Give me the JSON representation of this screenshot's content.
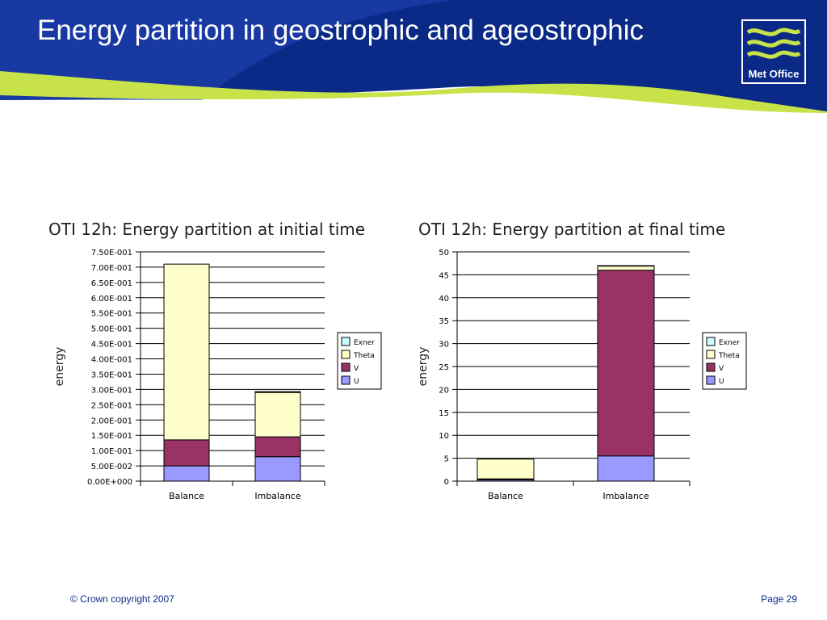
{
  "slide": {
    "title": "Energy partition in geostrophic and ageostrophic",
    "logo_text": "Met Office",
    "footer_left": "© Crown copyright 2007",
    "footer_right": "Page 29"
  },
  "colors": {
    "header_blue": "#0b2a87",
    "header_light_blue": "#3a5fd6",
    "accent_green": "#c8e34a",
    "Exner": "#ccffff",
    "Theta": "#ffffcc",
    "V": "#993366",
    "U": "#9999ff"
  },
  "chart_data": [
    {
      "type": "bar",
      "stacked": true,
      "title": "OTI 12h: Energy partition at initial time",
      "xlabel": "",
      "ylabel": "energy",
      "categories": [
        "Balance",
        "Imbalance"
      ],
      "ylim": [
        0,
        0.75
      ],
      "yticks": [
        0,
        0.05,
        0.1,
        0.15,
        0.2,
        0.25,
        0.3,
        0.35,
        0.4,
        0.45,
        0.5,
        0.55,
        0.6,
        0.65,
        0.7,
        0.75
      ],
      "ytick_labels": [
        "0.00E+000",
        "5.00E-002",
        "1.00E-001",
        "1.50E-001",
        "2.00E-001",
        "2.50E-001",
        "3.00E-001",
        "3.50E-001",
        "4.00E-001",
        "4.50E-001",
        "5.00E-001",
        "5.50E-001",
        "6.00E-001",
        "6.50E-001",
        "7.00E-001",
        "7.50E-001"
      ],
      "grid": true,
      "legend_position": "right",
      "series": [
        {
          "name": "U",
          "values": [
            0.05,
            0.08
          ]
        },
        {
          "name": "V",
          "values": [
            0.085,
            0.065
          ]
        },
        {
          "name": "Theta",
          "values": [
            0.575,
            0.145
          ]
        },
        {
          "name": "Exner",
          "values": [
            0.0,
            0.003
          ]
        }
      ]
    },
    {
      "type": "bar",
      "stacked": true,
      "title": "OTI 12h: Energy partition at final time",
      "xlabel": "",
      "ylabel": "energy",
      "categories": [
        "Balance",
        "Imbalance"
      ],
      "ylim": [
        0,
        50
      ],
      "yticks": [
        0,
        5,
        10,
        15,
        20,
        25,
        30,
        35,
        40,
        45,
        50
      ],
      "ytick_labels": [
        "0",
        "5",
        "10",
        "15",
        "20",
        "25",
        "30",
        "35",
        "40",
        "45",
        "50"
      ],
      "grid": true,
      "legend_position": "right",
      "series": [
        {
          "name": "U",
          "values": [
            0.3,
            5.5
          ]
        },
        {
          "name": "V",
          "values": [
            0.2,
            40.5
          ]
        },
        {
          "name": "Theta",
          "values": [
            4.3,
            0.9
          ]
        },
        {
          "name": "Exner",
          "values": [
            0.0,
            0.1
          ]
        }
      ]
    }
  ]
}
